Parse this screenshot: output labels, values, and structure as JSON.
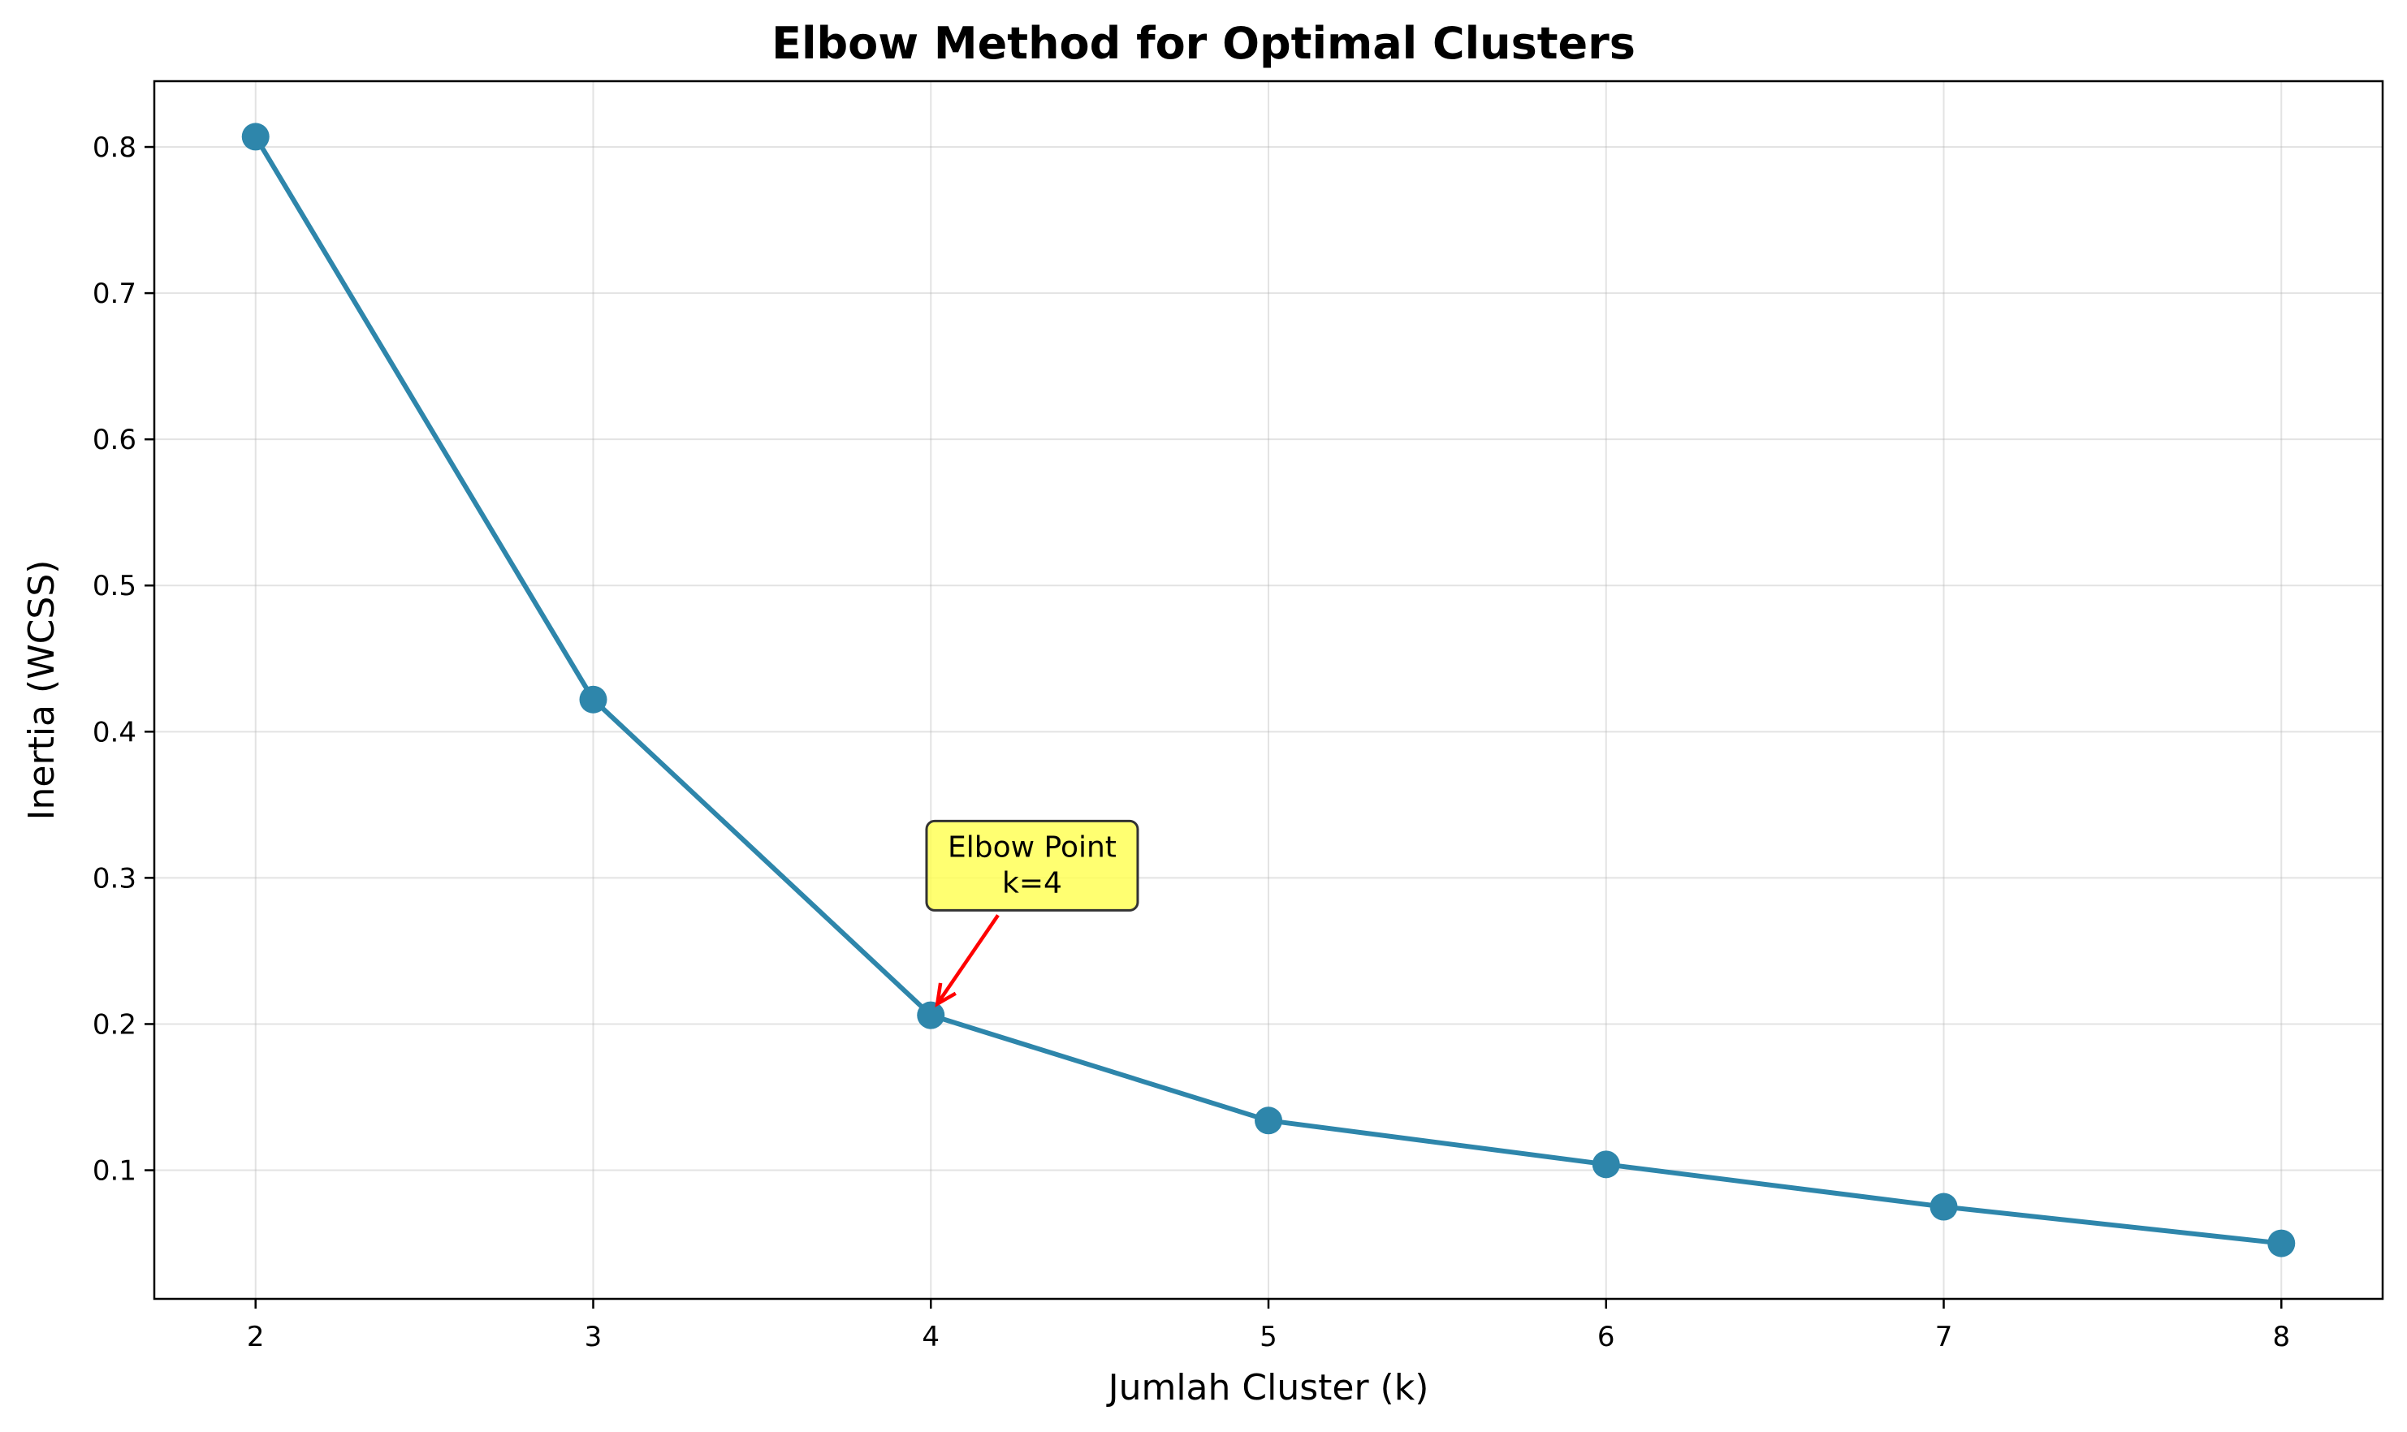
{
  "chart_data": {
    "type": "line",
    "title": "Elbow Method for Optimal Clusters",
    "xlabel": "Jumlah Cluster (k)",
    "ylabel": "Inertia (WCSS)",
    "x": [
      2,
      3,
      4,
      5,
      6,
      7,
      8
    ],
    "series": [
      {
        "values": [
          0.807,
          0.422,
          0.206,
          0.134,
          0.104,
          0.075,
          0.05
        ],
        "color": "#2e86ab"
      }
    ],
    "xlim": [
      1.7,
      8.3
    ],
    "ylim": [
      0.012,
      0.845
    ],
    "xticks": [
      2,
      3,
      4,
      5,
      6,
      7,
      8
    ],
    "yticks": [
      0.1,
      0.2,
      0.3,
      0.4,
      0.5,
      0.6,
      0.7,
      0.8
    ],
    "grid": true,
    "annotation": {
      "lines": [
        "Elbow Point",
        "k=4"
      ],
      "target": {
        "x": 4,
        "y": 0.206
      },
      "text_at": {
        "x": 4.3,
        "y": 0.29
      },
      "box_color": "#ffff4d",
      "arrow_color": "#ff0000"
    }
  }
}
